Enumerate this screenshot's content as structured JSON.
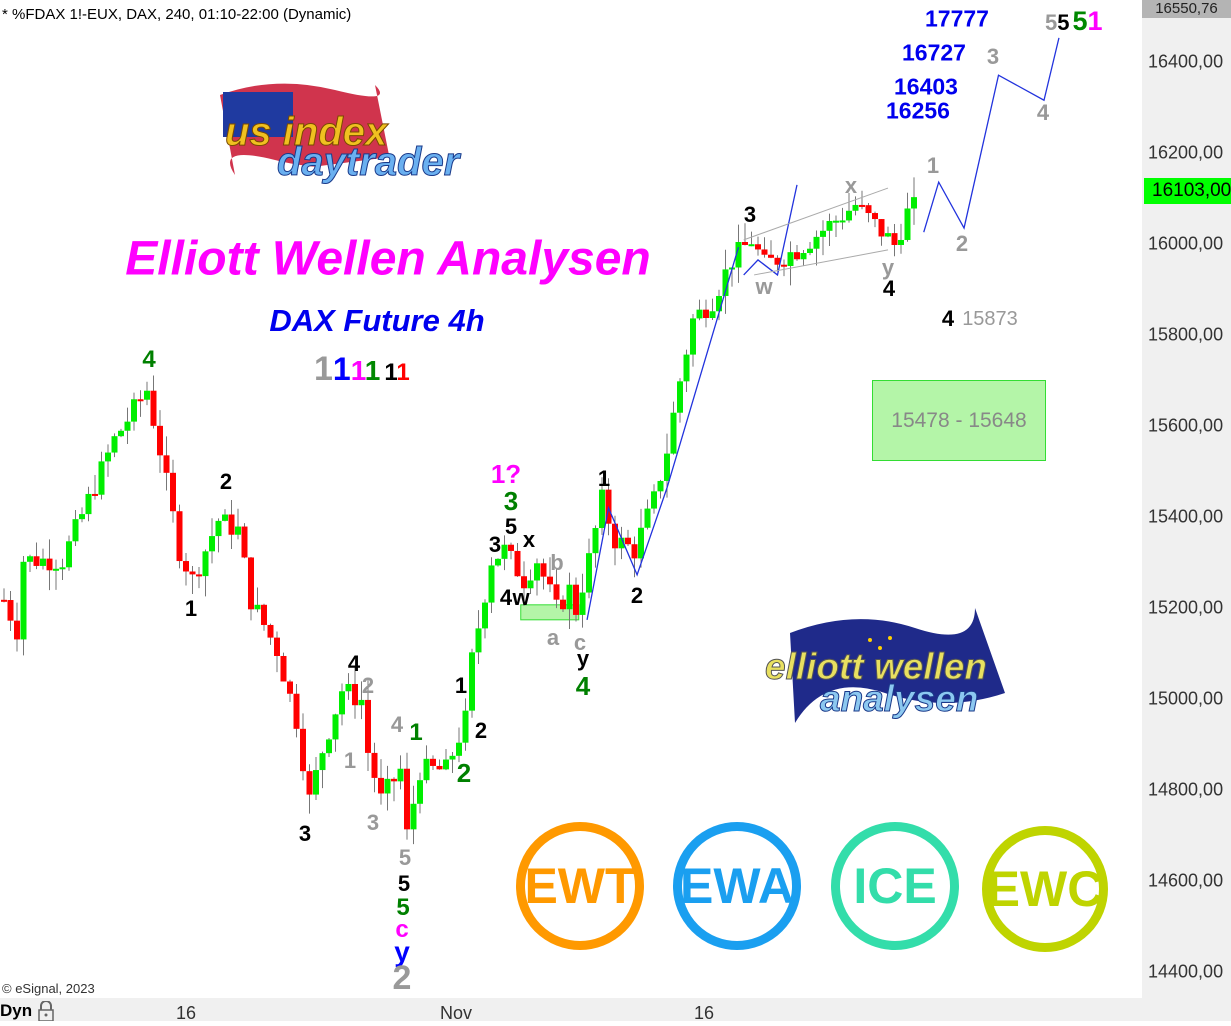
{
  "header": {
    "instrument": "* %FDAX 1!-EUX, DAX, 240, 01:10-22:00 (Dynamic)",
    "copyright": "© eSignal, 2023",
    "dyn_label": "Dyn"
  },
  "overlay": {
    "title": "Elliott Wellen Analysen",
    "subtitle": "DAX Future 4h",
    "degree_legend": [
      {
        "text": "1",
        "color": "#999999"
      },
      {
        "text": "1",
        "color": "#0000ff"
      },
      {
        "text": "1",
        "color": "#ff00ff"
      },
      {
        "text": "1",
        "color": "#008000"
      },
      {
        "text": "1",
        "color": "#000000"
      },
      {
        "text": "1",
        "color": "#ff0000"
      }
    ],
    "targets": [
      "17777",
      "16727",
      "16403",
      "16256"
    ],
    "top_wave": [
      {
        "text": "5",
        "color": "#999999"
      },
      {
        "text": "5",
        "color": "#000000"
      },
      {
        "text": "5",
        "color": "#008000"
      },
      {
        "text": "1",
        "color": "#ff00ff"
      }
    ],
    "zone_label": "15478 - 15648",
    "level_label": {
      "wave": "4",
      "price": "15873"
    },
    "logo_us": "us index daytrader",
    "logo_ewa": "elliott wellen analysen",
    "badges": [
      {
        "text": "EWT",
        "color": "#ff9900"
      },
      {
        "text": "EWA",
        "color": "#1a9ff0"
      },
      {
        "text": "ICE",
        "color": "#33ddaa"
      },
      {
        "text": "EWC",
        "color": "#bfd400"
      }
    ]
  },
  "wave_labels": [
    {
      "text": "4",
      "color": "#008000"
    },
    {
      "text": "2",
      "color": "#000000"
    },
    {
      "text": "1",
      "color": "#000000"
    },
    {
      "text": "3",
      "color": "#000000"
    },
    {
      "text": "4",
      "color": "#000000"
    },
    {
      "text": "2",
      "color": "#999999"
    },
    {
      "text": "1",
      "color": "#999999"
    },
    {
      "text": "4",
      "color": "#999999"
    },
    {
      "text": "1",
      "color": "#008000"
    },
    {
      "text": "3",
      "color": "#999999"
    },
    {
      "text": "5",
      "color": "#999999"
    },
    {
      "text": "5",
      "color": "#000000"
    },
    {
      "text": "5",
      "color": "#008000"
    },
    {
      "text": "c",
      "color": "#ff00ff"
    },
    {
      "text": "y",
      "color": "#0000ff"
    },
    {
      "text": "2",
      "color": "#999999"
    },
    {
      "text": "1",
      "color": "#000000"
    },
    {
      "text": "2",
      "color": "#000000"
    },
    {
      "text": "2",
      "color": "#008000"
    },
    {
      "text": "1?",
      "color": "#ff00ff"
    },
    {
      "text": "3",
      "color": "#008000"
    },
    {
      "text": "5",
      "color": "#000000"
    },
    {
      "text": "3",
      "color": "#000000"
    },
    {
      "text": "x",
      "color": "#000000"
    },
    {
      "text": "4",
      "color": "#000000"
    },
    {
      "text": "w",
      "color": "#000000"
    },
    {
      "text": "b",
      "color": "#999999"
    },
    {
      "text": "a",
      "color": "#999999"
    },
    {
      "text": "c",
      "color": "#999999"
    },
    {
      "text": "y",
      "color": "#000000"
    },
    {
      "text": "4",
      "color": "#008000"
    },
    {
      "text": "1",
      "color": "#000000"
    },
    {
      "text": "2",
      "color": "#000000"
    },
    {
      "text": "3",
      "color": "#000000"
    },
    {
      "text": "w",
      "color": "#999999"
    },
    {
      "text": "x",
      "color": "#999999"
    },
    {
      "text": "y",
      "color": "#999999"
    },
    {
      "text": "4",
      "color": "#000000"
    },
    {
      "text": "1",
      "color": "#999999"
    },
    {
      "text": "2",
      "color": "#999999"
    },
    {
      "text": "3",
      "color": "#999999"
    },
    {
      "text": "4",
      "color": "#999999"
    }
  ],
  "chart_data": {
    "type": "candlestick",
    "title": "* %FDAX 1!-EUX, DAX, 240, 01:10-22:00 (Dynamic)",
    "ylim": [
      14300,
      16550.76
    ],
    "y_ticks": [
      "16400,00",
      "16200,00",
      "16000,00",
      "15800,00",
      "15600,00",
      "15400,00",
      "15200,00",
      "15000,00",
      "14800,00",
      "14600,00",
      "14400,00"
    ],
    "y_tick_values": [
      16400,
      16200,
      16000,
      15800,
      15600,
      15400,
      15200,
      15000,
      14800,
      14600,
      14400
    ],
    "axis_top_value": "16550,76",
    "last_price": "16103,00",
    "last_price_color": "#00ff00",
    "x_ticks": [
      "16",
      "Nov",
      "16"
    ],
    "up_color": "#00ee00",
    "down_color": "#ff0000",
    "price_path_bar_close": [
      [
        0,
        15218
      ],
      [
        2,
        15152
      ],
      [
        3,
        15306
      ],
      [
        9,
        15305
      ],
      [
        15,
        15503
      ],
      [
        17,
        15570
      ],
      [
        22,
        15680
      ],
      [
        24,
        15547
      ],
      [
        27,
        15327
      ],
      [
        29,
        15262
      ],
      [
        33,
        15393
      ],
      [
        36,
        15371
      ],
      [
        38,
        15218
      ],
      [
        42,
        15108
      ],
      [
        45,
        14954
      ],
      [
        47,
        14778
      ],
      [
        49,
        14888
      ],
      [
        52,
        15020
      ],
      [
        55,
        14998
      ],
      [
        55.5,
        14910
      ],
      [
        58,
        14778
      ],
      [
        61,
        14844
      ],
      [
        62,
        14701
      ],
      [
        64,
        14844
      ],
      [
        68,
        14844
      ],
      [
        71,
        14954
      ],
      [
        72,
        15086
      ],
      [
        75,
        15306
      ],
      [
        77,
        15327
      ],
      [
        80,
        15262
      ],
      [
        82,
        15306
      ],
      [
        85,
        15196
      ],
      [
        87,
        15240
      ],
      [
        88,
        15196
      ],
      [
        90,
        15306
      ],
      [
        92,
        15437
      ],
      [
        94,
        15350
      ],
      [
        97,
        15327
      ],
      [
        100,
        15437
      ],
      [
        102,
        15547
      ],
      [
        104,
        15700
      ],
      [
        106,
        15833
      ],
      [
        109,
        15877
      ],
      [
        112,
        15965
      ],
      [
        115,
        16009
      ],
      [
        117,
        15954
      ],
      [
        122,
        15987
      ],
      [
        126,
        16031
      ],
      [
        131,
        16086
      ],
      [
        134,
        16042
      ],
      [
        137,
        15998
      ],
      [
        140,
        16103
      ]
    ],
    "projection_bar_price": [
      [
        141.5,
        16026
      ],
      [
        143.8,
        16136
      ],
      [
        147.7,
        16035
      ],
      [
        153,
        16371
      ],
      [
        160,
        16316
      ],
      [
        162.3,
        16453
      ]
    ],
    "count_lines_bar_price": [
      [
        89.7,
        15174
      ],
      [
        93,
        15420
      ],
      [
        97.4,
        15273
      ],
      [
        102,
        15464
      ],
      [
        113,
        15993
      ]
    ],
    "channel_upper_bar_price": [
      [
        113.8,
        16009
      ],
      [
        136,
        16123
      ]
    ],
    "channel_lower_bar_price": [
      [
        115.4,
        15932
      ],
      [
        136,
        15987
      ]
    ],
    "zone_small": [
      15174,
      15207
    ],
    "zone_big": [
      15478,
      15648
    ]
  }
}
